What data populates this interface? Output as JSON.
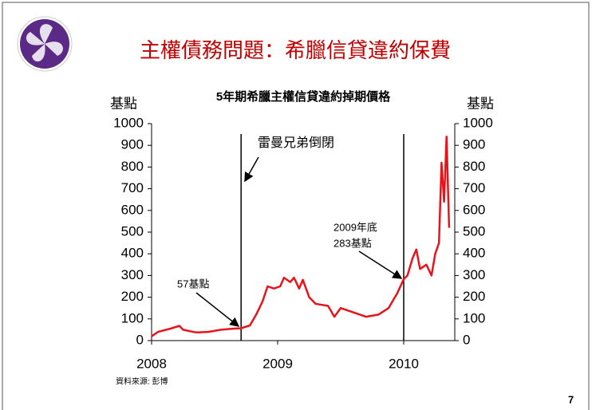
{
  "slide_title": "主權債務問題：希臘信貸違約保費",
  "source": "資料來源: 彭博",
  "page_number": "7",
  "chart_data": {
    "type": "line",
    "title": "5年期希臘主權信貸違約掉期價格",
    "ylabel": "基點",
    "y2label": "基點",
    "x": [
      2008.0,
      2008.05,
      2008.15,
      2008.22,
      2008.25,
      2008.35,
      2008.45,
      2008.55,
      2008.65,
      2008.71,
      2008.78,
      2008.83,
      2008.88,
      2008.92,
      2008.97,
      2009.02,
      2009.05,
      2009.1,
      2009.13,
      2009.17,
      2009.2,
      2009.25,
      2009.3,
      2009.4,
      2009.45,
      2009.5,
      2009.6,
      2009.7,
      2009.8,
      2009.88,
      2009.95,
      2010.0,
      2010.03,
      2010.07,
      2010.1,
      2010.13,
      2010.18,
      2010.22,
      2010.25,
      2010.28,
      2010.3,
      2010.32,
      2010.34,
      2010.36
    ],
    "values": [
      20,
      40,
      55,
      68,
      50,
      38,
      40,
      50,
      55,
      57,
      70,
      120,
      180,
      250,
      240,
      250,
      290,
      270,
      290,
      240,
      280,
      200,
      170,
      160,
      110,
      150,
      130,
      110,
      120,
      150,
      220,
      283,
      300,
      380,
      420,
      330,
      350,
      300,
      400,
      450,
      820,
      640,
      940,
      520
    ],
    "color": "#e8141b",
    "xlim": [
      2008,
      2010.405
    ],
    "xticks": [
      2008,
      2009,
      2010
    ],
    "ylim": [
      0,
      1000
    ],
    "yticks": [
      0,
      100,
      200,
      300,
      400,
      500,
      600,
      700,
      800,
      900,
      1000
    ],
    "y2lim": [
      0,
      1000
    ],
    "y2ticks": [
      0,
      100,
      200,
      300,
      400,
      500,
      600,
      700,
      800,
      900,
      1000
    ],
    "vlines": [
      2008.71,
      2010.0
    ],
    "annotations": [
      "雷曼兄弟倒閉",
      "57基點",
      "2009年底",
      "283基點"
    ]
  }
}
